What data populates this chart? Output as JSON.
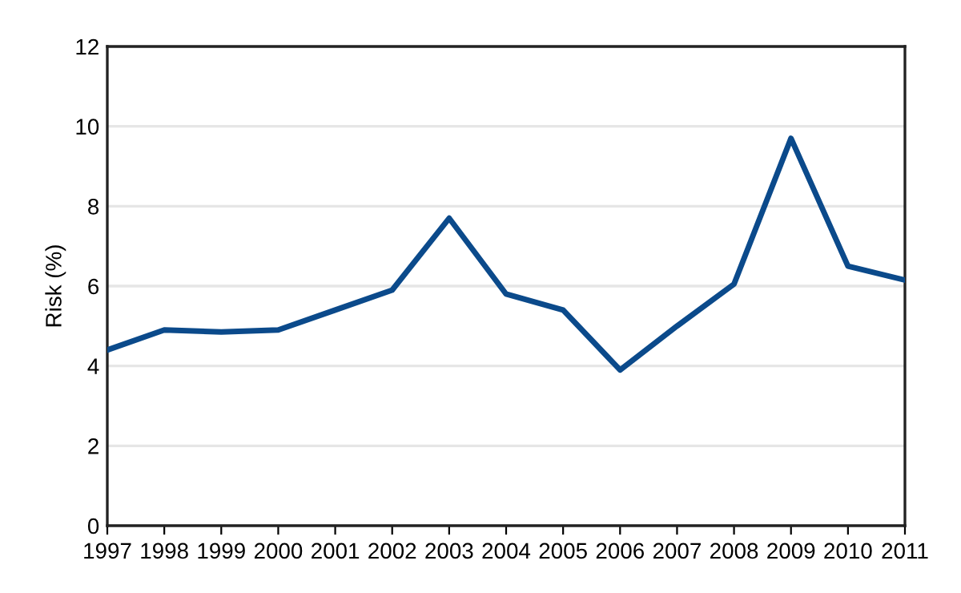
{
  "chart_data": {
    "type": "line",
    "ylabel": "Risk (%)",
    "x": [
      1997,
      1998,
      1999,
      2000,
      2001,
      2002,
      2003,
      2004,
      2005,
      2006,
      2007,
      2008,
      2009,
      2010,
      2011
    ],
    "series": [
      {
        "color": "#0b4a8b",
        "values": [
          4.4,
          4.9,
          4.85,
          4.9,
          5.4,
          5.9,
          7.7,
          5.8,
          5.4,
          3.9,
          5.0,
          6.05,
          9.7,
          6.5,
          6.15
        ]
      }
    ],
    "xlim": [
      1997,
      2011
    ],
    "xticks": [
      1997,
      1998,
      1999,
      2000,
      2001,
      2002,
      2003,
      2004,
      2005,
      2006,
      2007,
      2008,
      2009,
      2010,
      2011
    ],
    "ylim": [
      0,
      12
    ],
    "yticks": [
      0,
      2,
      4,
      6,
      8,
      10,
      12
    ],
    "grid": "y",
    "marker": "none",
    "line_style": "solid"
  }
}
